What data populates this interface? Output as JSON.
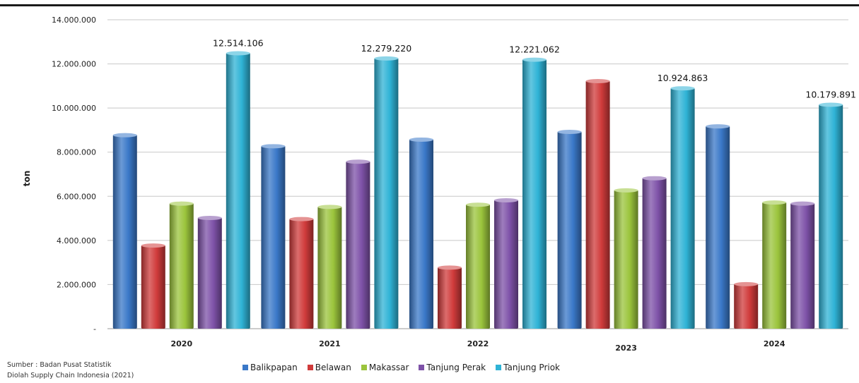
{
  "chart_data": {
    "type": "bar",
    "categories": [
      "2020",
      "2021",
      "2022",
      "2023",
      "2024"
    ],
    "ylabel": "ton",
    "ylim": [
      0,
      14000000
    ],
    "yticks": [
      {
        "value": 0,
        "label": "-"
      },
      {
        "value": 2000000,
        "label": "2.000.000"
      },
      {
        "value": 4000000,
        "label": "4.000.000"
      },
      {
        "value": 6000000,
        "label": "6.000.000"
      },
      {
        "value": 8000000,
        "label": "8.000.000"
      },
      {
        "value": 10000000,
        "label": "10.000.000"
      },
      {
        "value": 12000000,
        "label": "12.000.000"
      },
      {
        "value": 14000000,
        "label": "14.000.000"
      }
    ],
    "grid": true,
    "legend_position": "bottom",
    "series": [
      {
        "name": "Balikpapan",
        "color": "#3a78c8",
        "values": [
          8800000,
          8300000,
          8600000,
          8950000,
          9200000
        ]
      },
      {
        "name": "Belawan",
        "color": "#d03b3b",
        "values": [
          3800000,
          5000000,
          2800000,
          11250000,
          2050000
        ]
      },
      {
        "name": "Makassar",
        "color": "#9bc43c",
        "values": [
          5700000,
          5550000,
          5650000,
          6300000,
          5750000
        ]
      },
      {
        "name": "Tanjung Perak",
        "color": "#7e52a8",
        "values": [
          5050000,
          7600000,
          5850000,
          6850000,
          5700000
        ]
      },
      {
        "name": "Tanjung Priok",
        "color": "#2fb3d6",
        "values": [
          12514106,
          12279220,
          12221062,
          10924863,
          10179891
        ]
      }
    ],
    "data_labels": [
      {
        "series": "Tanjung Priok",
        "category": "2020",
        "text": "12.514.106"
      },
      {
        "series": "Tanjung Priok",
        "category": "2021",
        "text": "12.279.220"
      },
      {
        "series": "Tanjung Priok",
        "category": "2022",
        "text": "12.221.062"
      },
      {
        "series": "Tanjung Priok",
        "category": "2023",
        "text": "10.924.863"
      },
      {
        "series": "Tanjung Priok",
        "category": "2024",
        "text": "10.179.891"
      }
    ]
  },
  "source": {
    "line1": "Sumber : Badan Pusat Statistik",
    "line2": "Diolah Supply Chain Indonesia (2021)"
  }
}
